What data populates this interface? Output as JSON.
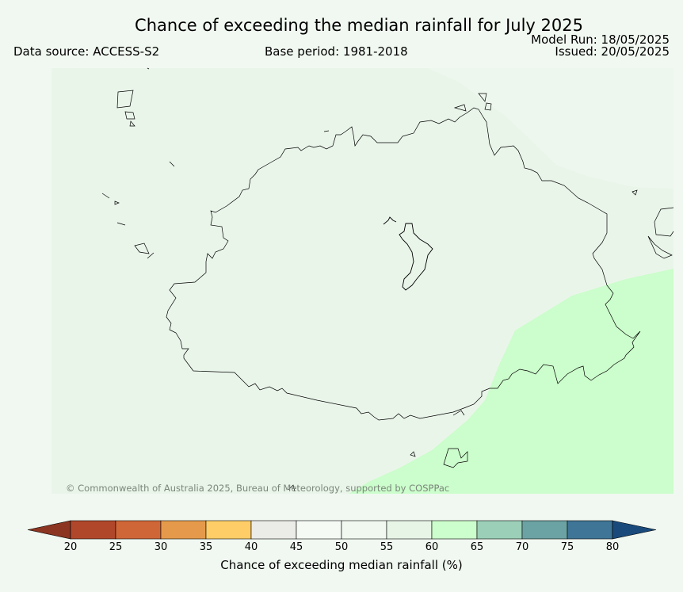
{
  "header": {
    "title": "Chance of exceeding the median rainfall for July 2025",
    "model_run": "Model Run: 18/05/2025",
    "issued": "Issued: 20/05/2025",
    "data_source": "Data source: ACCESS-S2",
    "base_period": "Base period: 1981-2018"
  },
  "map": {
    "copyright": "© Commonwealth of Australia 2025, Bureau of Meteorology, supported by COSPPac",
    "colors": {
      "background": "#f1f8f1",
      "band_55_60": "#eaf5ea",
      "band_60_65": "#ccfdcc",
      "coastline": "#000000"
    }
  },
  "colorbar": {
    "label": "Chance of exceeding median rainfall (%)",
    "ticks": [
      "20",
      "25",
      "30",
      "35",
      "40",
      "45",
      "50",
      "55",
      "60",
      "65",
      "70",
      "75",
      "80"
    ],
    "bins": [
      {
        "range": "20-25",
        "color": "#b0472b"
      },
      {
        "range": "25-30",
        "color": "#cf6638"
      },
      {
        "range": "30-35",
        "color": "#e59a4b"
      },
      {
        "range": "35-40",
        "color": "#fecd67"
      },
      {
        "range": "40-45",
        "color": "#ebebe7"
      },
      {
        "range": "45-50",
        "color": "#f5faf5"
      },
      {
        "range": "50-55",
        "color": "#f0f8f0"
      },
      {
        "range": "55-60",
        "color": "#e7f5e7"
      },
      {
        "range": "60-65",
        "color": "#ccfdcc"
      },
      {
        "range": "65-70",
        "color": "#9bcfb8"
      },
      {
        "range": "70-75",
        "color": "#6ba2a4"
      },
      {
        "range": "75-80",
        "color": "#3f7596"
      }
    ],
    "under_color": "#8b3522",
    "over_color": "#1a4a7c"
  }
}
